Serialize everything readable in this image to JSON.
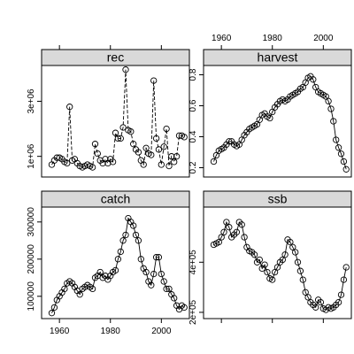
{
  "chart_data": {
    "type": "line",
    "layout": "lattice 2x2 panels, shared x-axis (year), free y-axes",
    "xlim": [
      1953,
      2011
    ],
    "x_ticks": [
      1960,
      1980,
      2000
    ],
    "x_tick_labels": [
      "1960",
      "1980",
      "2000"
    ],
    "panels": [
      {
        "name": "rec",
        "position": "top-left",
        "line_style": "dashed",
        "ylim": [
          250000,
          4300000
        ],
        "y_ticks": [
          1000000,
          3000000
        ],
        "y_tick_labels": [
          "1e+06",
          "3e+06"
        ],
        "points": [
          [
            1957,
            700000
          ],
          [
            1958,
            850000
          ],
          [
            1959,
            950000
          ],
          [
            1960,
            950000
          ],
          [
            1961,
            900000
          ],
          [
            1962,
            800000
          ],
          [
            1963,
            750000
          ],
          [
            1964,
            2800000
          ],
          [
            1965,
            850000
          ],
          [
            1966,
            900000
          ],
          [
            1967,
            750000
          ],
          [
            1968,
            650000
          ],
          [
            1969,
            600000
          ],
          [
            1970,
            650000
          ],
          [
            1971,
            700000
          ],
          [
            1972,
            650000
          ],
          [
            1973,
            600000
          ],
          [
            1974,
            1450000
          ],
          [
            1975,
            1100000
          ],
          [
            1976,
            850000
          ],
          [
            1977,
            750000
          ],
          [
            1978,
            900000
          ],
          [
            1979,
            750000
          ],
          [
            1980,
            900000
          ],
          [
            1981,
            800000
          ],
          [
            1982,
            1850000
          ],
          [
            1983,
            1650000
          ],
          [
            1984,
            1650000
          ],
          [
            1985,
            2050000
          ],
          [
            1986,
            4150000
          ],
          [
            1987,
            1950000
          ],
          [
            1988,
            1900000
          ],
          [
            1989,
            1450000
          ],
          [
            1990,
            1250000
          ],
          [
            1991,
            1150000
          ],
          [
            1992,
            850000
          ],
          [
            1993,
            700000
          ],
          [
            1994,
            1300000
          ],
          [
            1995,
            1100000
          ],
          [
            1996,
            1050000
          ],
          [
            1997,
            3750000
          ],
          [
            1998,
            1650000
          ],
          [
            1999,
            1250000
          ],
          [
            2000,
            700000
          ],
          [
            2001,
            1350000
          ],
          [
            2002,
            2000000
          ],
          [
            2003,
            650000
          ],
          [
            2004,
            1000000
          ],
          [
            2005,
            800000
          ],
          [
            2006,
            1000000
          ],
          [
            2007,
            1750000
          ],
          [
            2008,
            1750000
          ],
          [
            2009,
            1700000
          ]
        ]
      },
      {
        "name": "harvest",
        "position": "top-right",
        "line_style": "solid",
        "ylim": [
          0.14,
          0.86
        ],
        "y_ticks": [
          0.2,
          0.4,
          0.6,
          0.8
        ],
        "y_tick_labels": [
          "0.2",
          "0.4",
          "0.6",
          "0.8"
        ],
        "points": [
          [
            1957,
            0.24
          ],
          [
            1958,
            0.28
          ],
          [
            1959,
            0.31
          ],
          [
            1960,
            0.32
          ],
          [
            1961,
            0.33
          ],
          [
            1962,
            0.35
          ],
          [
            1963,
            0.37
          ],
          [
            1964,
            0.37
          ],
          [
            1965,
            0.35
          ],
          [
            1966,
            0.34
          ],
          [
            1967,
            0.35
          ],
          [
            1968,
            0.38
          ],
          [
            1969,
            0.41
          ],
          [
            1970,
            0.43
          ],
          [
            1971,
            0.45
          ],
          [
            1972,
            0.46
          ],
          [
            1973,
            0.47
          ],
          [
            1974,
            0.48
          ],
          [
            1975,
            0.51
          ],
          [
            1976,
            0.54
          ],
          [
            1977,
            0.55
          ],
          [
            1978,
            0.53
          ],
          [
            1979,
            0.52
          ],
          [
            1980,
            0.56
          ],
          [
            1981,
            0.59
          ],
          [
            1982,
            0.61
          ],
          [
            1983,
            0.63
          ],
          [
            1984,
            0.64
          ],
          [
            1985,
            0.63
          ],
          [
            1986,
            0.64
          ],
          [
            1987,
            0.66
          ],
          [
            1988,
            0.67
          ],
          [
            1989,
            0.68
          ],
          [
            1990,
            0.69
          ],
          [
            1991,
            0.71
          ],
          [
            1992,
            0.72
          ],
          [
            1993,
            0.75
          ],
          [
            1994,
            0.78
          ],
          [
            1995,
            0.79
          ],
          [
            1996,
            0.77
          ],
          [
            1997,
            0.72
          ],
          [
            1998,
            0.69
          ],
          [
            1999,
            0.68
          ],
          [
            2000,
            0.67
          ],
          [
            2001,
            0.66
          ],
          [
            2002,
            0.63
          ],
          [
            2003,
            0.58
          ],
          [
            2004,
            0.5
          ],
          [
            2005,
            0.38
          ],
          [
            2006,
            0.33
          ],
          [
            2007,
            0.29
          ],
          [
            2008,
            0.24
          ],
          [
            2009,
            0.19
          ]
        ]
      },
      {
        "name": "catch",
        "position": "bottom-left",
        "line_style": "solid",
        "ylim": [
          40000,
          340000
        ],
        "y_ticks": [
          100000,
          200000,
          300000
        ],
        "y_tick_labels": [
          "100000",
          "200000",
          "300000"
        ],
        "points": [
          [
            1957,
            55000
          ],
          [
            1958,
            70000
          ],
          [
            1959,
            90000
          ],
          [
            1960,
            100000
          ],
          [
            1961,
            110000
          ],
          [
            1962,
            120000
          ],
          [
            1963,
            135000
          ],
          [
            1964,
            140000
          ],
          [
            1965,
            135000
          ],
          [
            1966,
            125000
          ],
          [
            1967,
            115000
          ],
          [
            1968,
            105000
          ],
          [
            1969,
            120000
          ],
          [
            1970,
            125000
          ],
          [
            1971,
            130000
          ],
          [
            1972,
            125000
          ],
          [
            1973,
            120000
          ],
          [
            1974,
            150000
          ],
          [
            1975,
            155000
          ],
          [
            1976,
            165000
          ],
          [
            1977,
            150000
          ],
          [
            1978,
            155000
          ],
          [
            1979,
            145000
          ],
          [
            1980,
            155000
          ],
          [
            1981,
            165000
          ],
          [
            1982,
            170000
          ],
          [
            1983,
            200000
          ],
          [
            1984,
            220000
          ],
          [
            1985,
            250000
          ],
          [
            1986,
            265000
          ],
          [
            1987,
            310000
          ],
          [
            1988,
            300000
          ],
          [
            1989,
            290000
          ],
          [
            1990,
            265000
          ],
          [
            1991,
            250000
          ],
          [
            1992,
            200000
          ],
          [
            1993,
            175000
          ],
          [
            1994,
            165000
          ],
          [
            1995,
            140000
          ],
          [
            1996,
            130000
          ],
          [
            1997,
            160000
          ],
          [
            1998,
            205000
          ],
          [
            1999,
            205000
          ],
          [
            2000,
            160000
          ],
          [
            2001,
            140000
          ],
          [
            2002,
            120000
          ],
          [
            2003,
            120000
          ],
          [
            2004,
            105000
          ],
          [
            2005,
            95000
          ],
          [
            2006,
            75000
          ],
          [
            2007,
            65000
          ],
          [
            2008,
            75000
          ],
          [
            2009,
            70000
          ]
        ]
      },
      {
        "name": "ssb",
        "position": "bottom-right",
        "line_style": "solid",
        "ylim": [
          175000,
          620000
        ],
        "y_ticks": [
          200000,
          400000
        ],
        "y_tick_labels": [
          "2e+05",
          "4e+05"
        ],
        "points": [
          [
            1957,
            470000
          ],
          [
            1958,
            475000
          ],
          [
            1959,
            480000
          ],
          [
            1960,
            500000
          ],
          [
            1961,
            520000
          ],
          [
            1962,
            560000
          ],
          [
            1963,
            540000
          ],
          [
            1964,
            500000
          ],
          [
            1965,
            510000
          ],
          [
            1966,
            520000
          ],
          [
            1967,
            560000
          ],
          [
            1968,
            550000
          ],
          [
            1969,
            500000
          ],
          [
            1970,
            460000
          ],
          [
            1971,
            445000
          ],
          [
            1972,
            440000
          ],
          [
            1973,
            430000
          ],
          [
            1974,
            400000
          ],
          [
            1975,
            410000
          ],
          [
            1976,
            375000
          ],
          [
            1977,
            390000
          ],
          [
            1978,
            360000
          ],
          [
            1979,
            335000
          ],
          [
            1980,
            330000
          ],
          [
            1981,
            360000
          ],
          [
            1982,
            380000
          ],
          [
            1983,
            400000
          ],
          [
            1984,
            410000
          ],
          [
            1985,
            430000
          ],
          [
            1986,
            490000
          ],
          [
            1987,
            480000
          ],
          [
            1988,
            460000
          ],
          [
            1989,
            440000
          ],
          [
            1990,
            400000
          ],
          [
            1991,
            365000
          ],
          [
            1992,
            330000
          ],
          [
            1993,
            280000
          ],
          [
            1994,
            260000
          ],
          [
            1995,
            240000
          ],
          [
            1996,
            230000
          ],
          [
            1997,
            220000
          ],
          [
            1998,
            250000
          ],
          [
            1999,
            240000
          ],
          [
            2000,
            215000
          ],
          [
            2001,
            210000
          ],
          [
            2002,
            220000
          ],
          [
            2003,
            215000
          ],
          [
            2004,
            220000
          ],
          [
            2005,
            230000
          ],
          [
            2006,
            240000
          ],
          [
            2007,
            270000
          ],
          [
            2008,
            330000
          ],
          [
            2009,
            380000
          ]
        ]
      }
    ]
  }
}
